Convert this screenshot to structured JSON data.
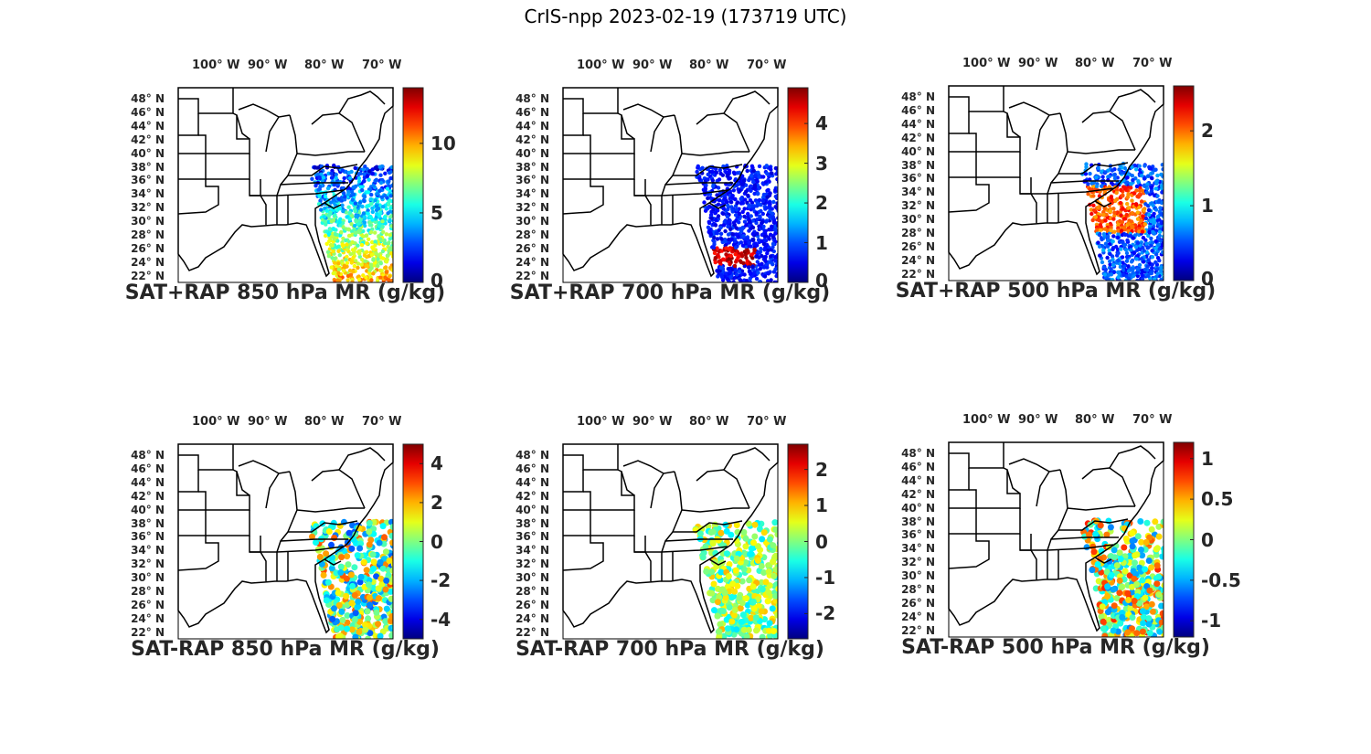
{
  "title": "CrIS-npp 2023-02-19 (173719 UTC)",
  "longitude_labels": [
    "100° W",
    "90° W",
    "80° W",
    "70° W"
  ],
  "latitude_labels": [
    "48° N",
    "46° N",
    "44° N",
    "42° N",
    "40° N",
    "38° N",
    "36° N",
    "34° N",
    "32° N",
    "30° N",
    "28° N",
    "26° N",
    "24° N",
    "22° N"
  ],
  "colormap": "jet",
  "panels": [
    {
      "title": "SAT+RAP 850 hPa MR (g/kg)",
      "colorbar": {
        "min": 0,
        "max": 14,
        "ticks": [
          "0",
          "5",
          "10"
        ],
        "tick_values": [
          0,
          5,
          10
        ]
      }
    },
    {
      "title": "SAT+RAP 700 hPa MR (g/kg)",
      "colorbar": {
        "min": 0,
        "max": 4.9,
        "ticks": [
          "0",
          "1",
          "2",
          "3",
          "4"
        ],
        "tick_values": [
          0,
          1,
          2,
          3,
          4
        ]
      }
    },
    {
      "title": "SAT+RAP 500 hPa MR (g/kg)",
      "colorbar": {
        "min": 0,
        "max": 2.6,
        "ticks": [
          "0",
          "1",
          "2"
        ],
        "tick_values": [
          0,
          1,
          2
        ]
      }
    },
    {
      "title": "SAT-RAP 850 hPa MR (g/kg)",
      "colorbar": {
        "min": -5,
        "max": 5,
        "ticks": [
          "-4",
          "-2",
          "0",
          "2",
          "4"
        ],
        "tick_values": [
          -4,
          -2,
          0,
          2,
          4
        ]
      }
    },
    {
      "title": "SAT-RAP 700 hPa MR (g/kg)",
      "colorbar": {
        "min": -2.7,
        "max": 2.7,
        "ticks": [
          "-2",
          "-1",
          "0",
          "1",
          "2"
        ],
        "tick_values": [
          -2,
          -1,
          0,
          1,
          2
        ]
      }
    },
    {
      "title": "SAT-RAP 500 hPa MR (g/kg)",
      "colorbar": {
        "min": -1.2,
        "max": 1.2,
        "ticks": [
          "-1",
          "-0.5",
          "0",
          "0.5",
          "1"
        ],
        "tick_values": [
          -1,
          -0.5,
          0,
          0.5,
          1
        ]
      }
    }
  ]
}
